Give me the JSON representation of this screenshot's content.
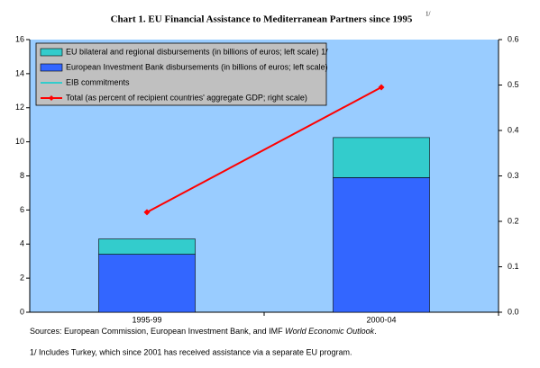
{
  "chart_data": {
    "type": "bar",
    "title": "Chart 1. EU Financial Assistance to Mediterranean Partners since 1995",
    "title_note": "1/",
    "categories": [
      "1995-99",
      "2000-04"
    ],
    "series": [
      {
        "name": "European Investment Bank disbursements (in billions of euros; left scale)",
        "kind": "bar",
        "color": "#3366ff",
        "axis": "y",
        "values": [
          3.4,
          7.9
        ]
      },
      {
        "name": "EU bilateral and regional disbursements (in billions of euros; left scale) 1/",
        "kind": "bar",
        "color": "#33cccc",
        "axis": "y",
        "values": [
          0.9,
          2.35
        ]
      },
      {
        "name": "EIB commitments",
        "kind": "line",
        "color": "#33cccc",
        "axis": "y",
        "values": [
          null,
          null
        ]
      },
      {
        "name": "Total (as percent of recipient countries' aggregate GDP; right scale)",
        "kind": "line",
        "color": "#ff0000",
        "axis": "y2",
        "values": [
          0.22,
          0.495
        ]
      }
    ],
    "legend_order": [
      1,
      0,
      2,
      3
    ],
    "ylim": [
      0,
      16
    ],
    "yticks": [
      0,
      2,
      4,
      6,
      8,
      10,
      12,
      14,
      16
    ],
    "y2lim": [
      0,
      0.6
    ],
    "y2ticks": [
      {
        "value": 0,
        "label": "0.0"
      },
      0.1,
      0.2,
      0.3,
      0.4,
      0.5,
      0.6
    ],
    "plot_color": "#99ccff",
    "legend_color": "#c0c0c0",
    "sources": {
      "lead": "Sources: European Commission, European Investment Bank, and IMF ",
      "italic": "World Economic Outlook",
      "end": "."
    },
    "footnote": "1/ Includes Turkey, which since 2001 has received assistance via a separate EU program."
  }
}
